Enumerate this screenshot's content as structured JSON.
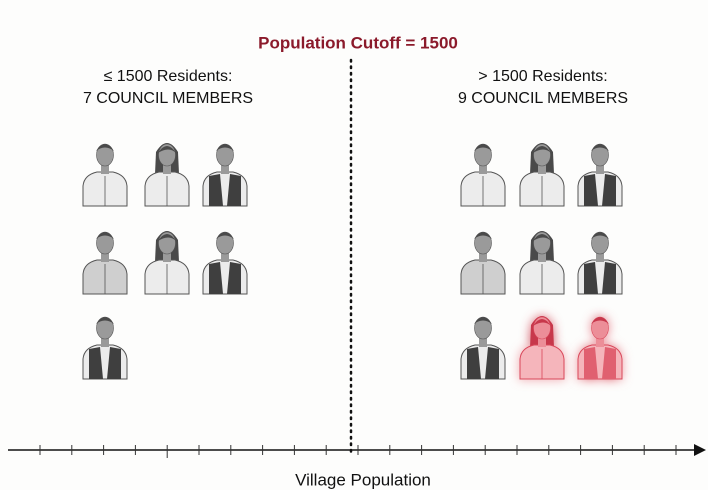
{
  "title": "Population Cutoff = 1500",
  "left": {
    "line1": "≤ 1500 Residents:",
    "line2": "7 COUNCIL MEMBERS"
  },
  "right": {
    "line1": "> 1500 Residents:",
    "line2": "9 COUNCIL MEMBERS"
  },
  "axis_label": "Village Population"
}
